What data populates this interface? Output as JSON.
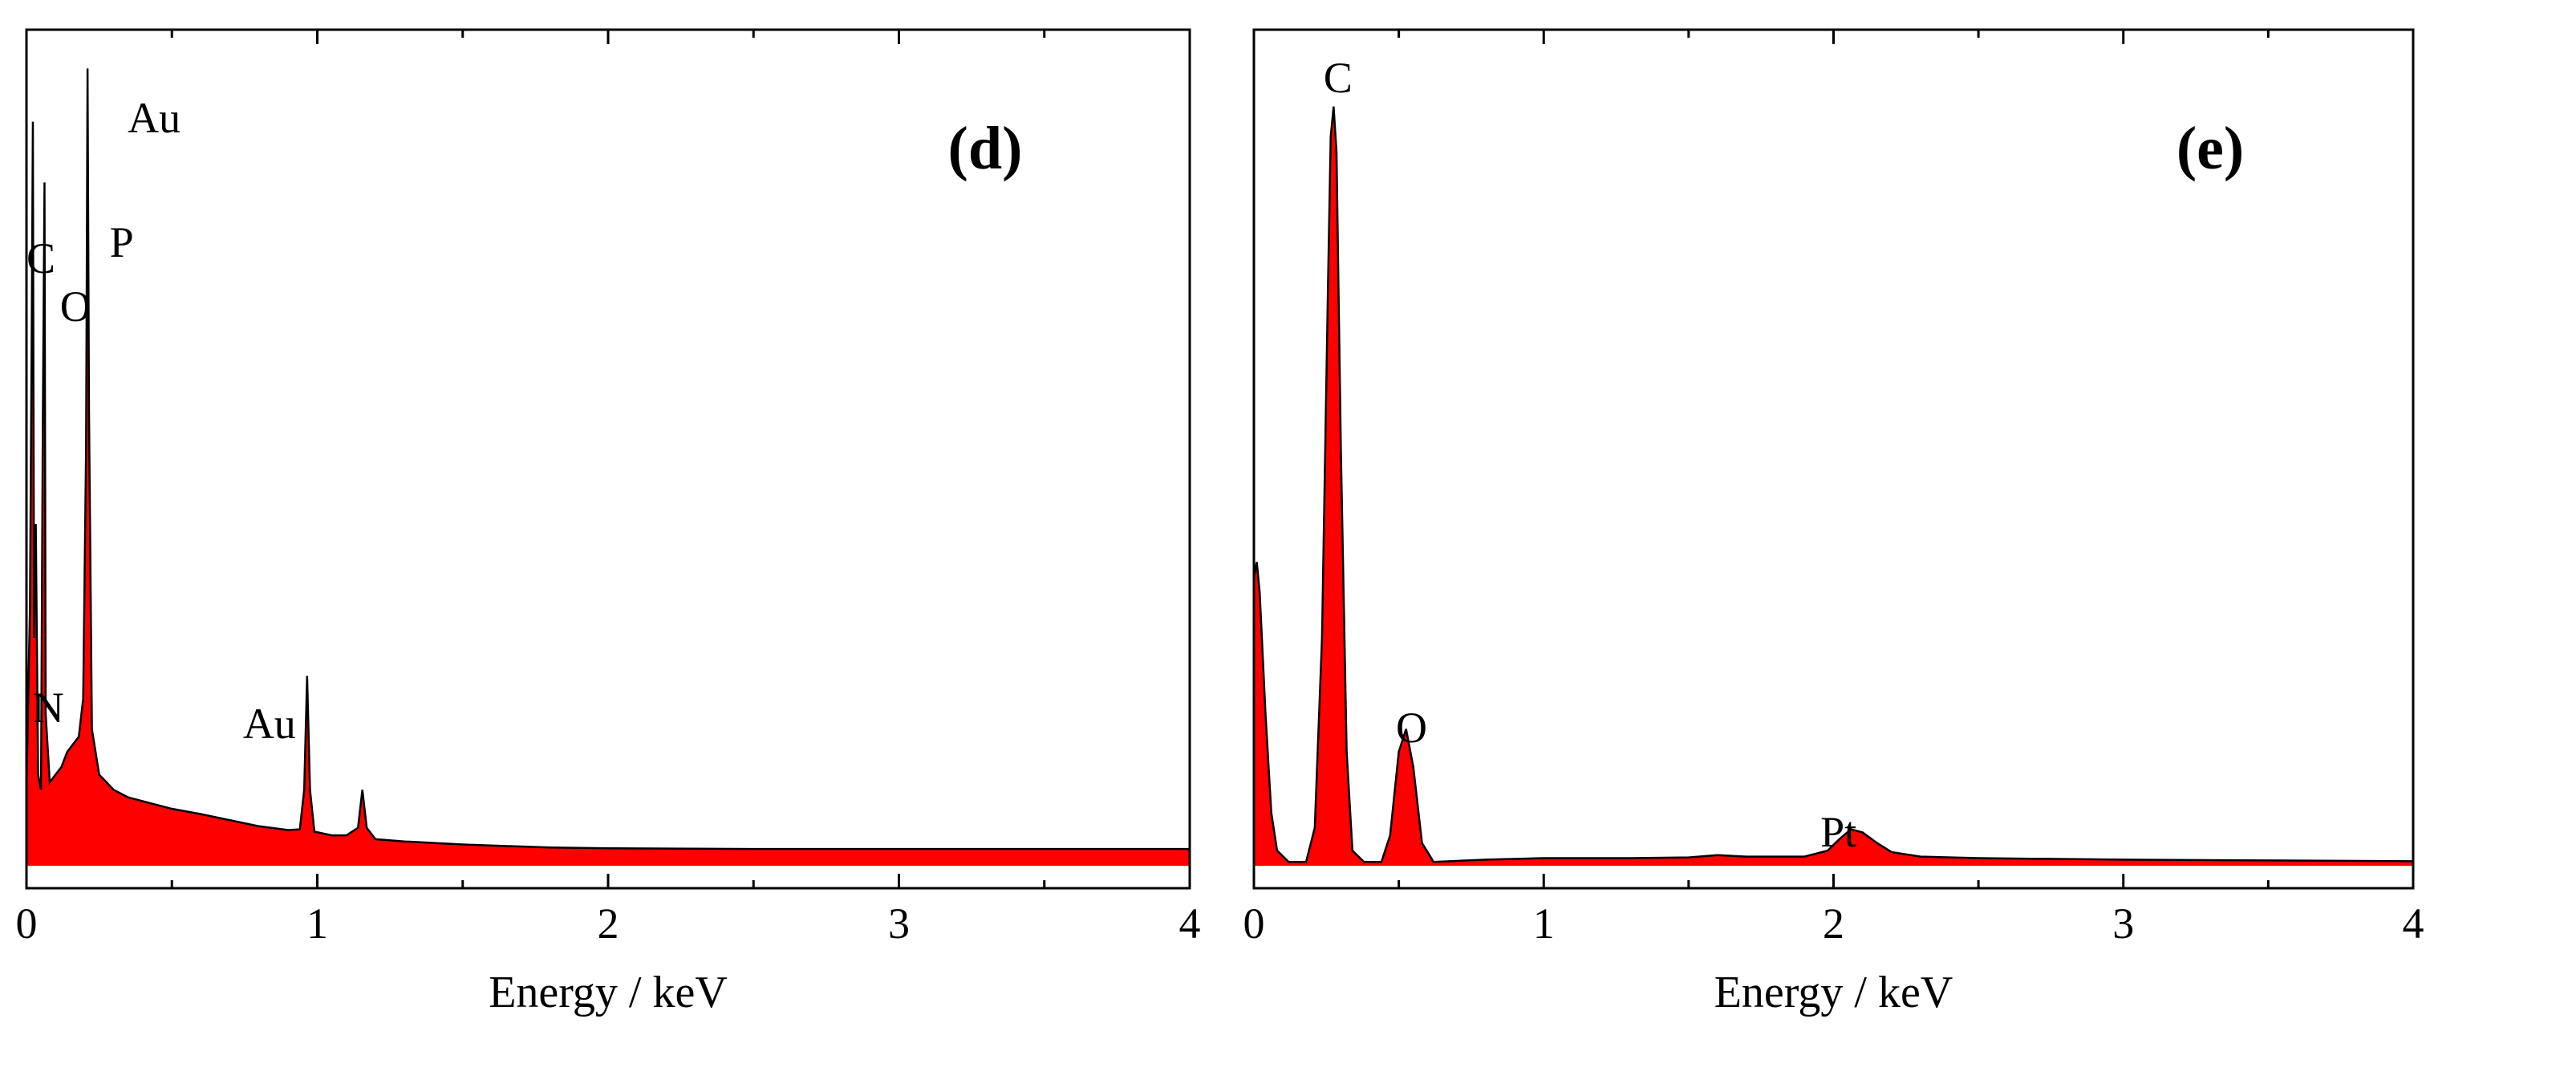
{
  "chart_data": [
    {
      "type": "area",
      "panel": "(d)",
      "xlabel": "Energy / keV",
      "ylabel": "",
      "xlim": [
        0,
        4
      ],
      "ylim": [
        0,
        1
      ],
      "y_ticks_shown": false,
      "grid": false,
      "xticks": [
        "0",
        "1",
        "2",
        "3",
        "4"
      ],
      "fill_color": "#ff0000",
      "line_color": "#000000",
      "series": [
        {
          "points": [
            [
              0.0,
              0.1
            ],
            [
              0.012,
              0.34
            ],
            [
              0.018,
              0.7
            ],
            [
              0.022,
              0.98
            ],
            [
              0.026,
              0.3
            ],
            [
              0.032,
              0.45
            ],
            [
              0.04,
              0.12
            ],
            [
              0.05,
              0.1
            ],
            [
              0.056,
              0.57
            ],
            [
              0.062,
              0.9
            ],
            [
              0.066,
              0.2
            ],
            [
              0.08,
              0.11
            ],
            [
              0.1,
              0.12
            ],
            [
              0.12,
              0.13
            ],
            [
              0.14,
              0.15
            ],
            [
              0.16,
              0.16
            ],
            [
              0.18,
              0.17
            ],
            [
              0.195,
              0.22
            ],
            [
              0.205,
              0.55
            ],
            [
              0.21,
              1.05
            ],
            [
              0.215,
              0.6
            ],
            [
              0.225,
              0.18
            ],
            [
              0.25,
              0.12
            ],
            [
              0.3,
              0.1
            ],
            [
              0.35,
              0.09
            ],
            [
              0.4,
              0.085
            ],
            [
              0.5,
              0.075
            ],
            [
              0.6,
              0.068
            ],
            [
              0.7,
              0.06
            ],
            [
              0.8,
              0.052
            ],
            [
              0.9,
              0.047
            ],
            [
              0.94,
              0.048
            ],
            [
              0.955,
              0.1
            ],
            [
              0.965,
              0.25
            ],
            [
              0.975,
              0.1
            ],
            [
              0.99,
              0.045
            ],
            [
              1.05,
              0.04
            ],
            [
              1.1,
              0.04
            ],
            [
              1.14,
              0.05
            ],
            [
              1.155,
              0.1
            ],
            [
              1.17,
              0.05
            ],
            [
              1.2,
              0.035
            ],
            [
              1.3,
              0.032
            ],
            [
              1.5,
              0.028
            ],
            [
              1.8,
              0.024
            ],
            [
              2.0,
              0.023
            ],
            [
              2.5,
              0.022
            ],
            [
              3.0,
              0.022
            ],
            [
              3.5,
              0.022
            ],
            [
              4.0,
              0.022
            ]
          ]
        }
      ],
      "peak_labels": [
        {
          "text": "C",
          "x": 0.022
        },
        {
          "text": "O",
          "x": 0.06
        },
        {
          "text": "P",
          "x": 0.17
        },
        {
          "text": "Au",
          "x": 0.21
        },
        {
          "text": "N",
          "x": 0.035
        },
        {
          "text": "Au",
          "x": 0.965
        }
      ]
    },
    {
      "type": "area",
      "panel": "(e)",
      "xlabel": "Energy / keV",
      "ylabel": "",
      "xlim": [
        0,
        4
      ],
      "ylim": [
        0,
        1
      ],
      "y_ticks_shown": false,
      "grid": false,
      "xticks": [
        "0",
        "1",
        "2",
        "3",
        "4"
      ],
      "fill_color": "#ff0000",
      "line_color": "#000000",
      "series": [
        {
          "points": [
            [
              0.0,
              0.38
            ],
            [
              0.01,
              0.4
            ],
            [
              0.02,
              0.36
            ],
            [
              0.04,
              0.2
            ],
            [
              0.06,
              0.07
            ],
            [
              0.08,
              0.02
            ],
            [
              0.12,
              0.005
            ],
            [
              0.18,
              0.005
            ],
            [
              0.21,
              0.05
            ],
            [
              0.235,
              0.3
            ],
            [
              0.255,
              0.75
            ],
            [
              0.265,
              0.96
            ],
            [
              0.275,
              1.0
            ],
            [
              0.285,
              0.94
            ],
            [
              0.3,
              0.55
            ],
            [
              0.32,
              0.15
            ],
            [
              0.34,
              0.02
            ],
            [
              0.38,
              0.005
            ],
            [
              0.44,
              0.005
            ],
            [
              0.47,
              0.04
            ],
            [
              0.5,
              0.15
            ],
            [
              0.525,
              0.18
            ],
            [
              0.55,
              0.13
            ],
            [
              0.58,
              0.03
            ],
            [
              0.62,
              0.005
            ],
            [
              0.8,
              0.008
            ],
            [
              1.0,
              0.01
            ],
            [
              1.3,
              0.01
            ],
            [
              1.5,
              0.011
            ],
            [
              1.6,
              0.014
            ],
            [
              1.7,
              0.012
            ],
            [
              1.9,
              0.012
            ],
            [
              1.98,
              0.02
            ],
            [
              2.02,
              0.035
            ],
            [
              2.06,
              0.048
            ],
            [
              2.1,
              0.044
            ],
            [
              2.15,
              0.03
            ],
            [
              2.2,
              0.018
            ],
            [
              2.3,
              0.012
            ],
            [
              2.5,
              0.01
            ],
            [
              3.0,
              0.008
            ],
            [
              3.5,
              0.007
            ],
            [
              4.0,
              0.006
            ]
          ]
        }
      ],
      "peak_labels": [
        {
          "text": "C",
          "x": 0.24
        },
        {
          "text": "O",
          "x": 0.49
        },
        {
          "text": "Pt",
          "x": 2.01
        }
      ]
    }
  ]
}
